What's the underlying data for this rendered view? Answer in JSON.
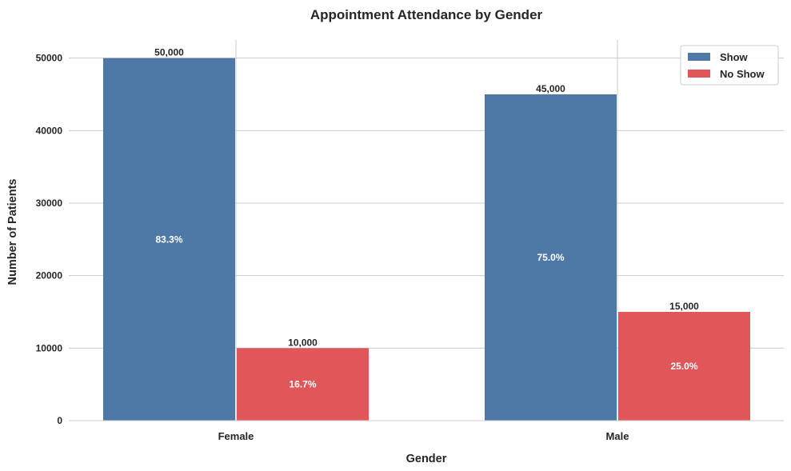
{
  "chart_data": {
    "type": "bar",
    "title": "Appointment Attendance by Gender",
    "xlabel": "Gender",
    "ylabel": "Number of Patients",
    "categories": [
      "Female",
      "Male"
    ],
    "series": [
      {
        "name": "Show",
        "color": "#4e79a7",
        "values": [
          50000,
          45000
        ],
        "value_labels": [
          "50,000",
          "45,000"
        ],
        "percent_labels": [
          "83.3%",
          "75.0%"
        ]
      },
      {
        "name": "No Show",
        "color": "#e15759",
        "values": [
          10000,
          15000
        ],
        "value_labels": [
          "10,000",
          "15,000"
        ],
        "percent_labels": [
          "16.7%",
          "25.0%"
        ]
      }
    ],
    "yticks": [
      0,
      10000,
      20000,
      30000,
      40000,
      50000
    ],
    "ylim": [
      0,
      52500
    ],
    "grid": true,
    "legend_position": "top-right"
  }
}
